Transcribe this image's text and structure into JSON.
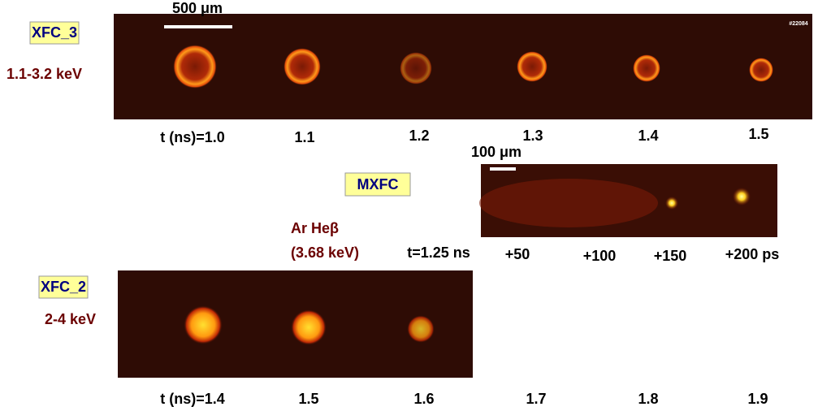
{
  "top_panel": {
    "camera": "XFC_3",
    "energy": "1.1-3.2 keV",
    "scale": "500 μm",
    "shot": "#22084",
    "times": [
      "t (ns)=1.0",
      "1.1",
      "1.2",
      "1.3",
      "1.4",
      "1.5"
    ]
  },
  "middle_panel": {
    "camera": "MXFC",
    "scale": "100 μm",
    "line": "Ar Heβ",
    "line_energy": "(3.68 keV)",
    "times": [
      "t=1.25 ns",
      "+50",
      "+100",
      "+150",
      "+200 ps"
    ]
  },
  "bottom_panel": {
    "camera": "XFC_2",
    "energy": "2-4 keV",
    "times": [
      "t (ns)=1.4",
      "1.5",
      "1.6",
      "1.7",
      "1.8",
      "1.9"
    ]
  }
}
